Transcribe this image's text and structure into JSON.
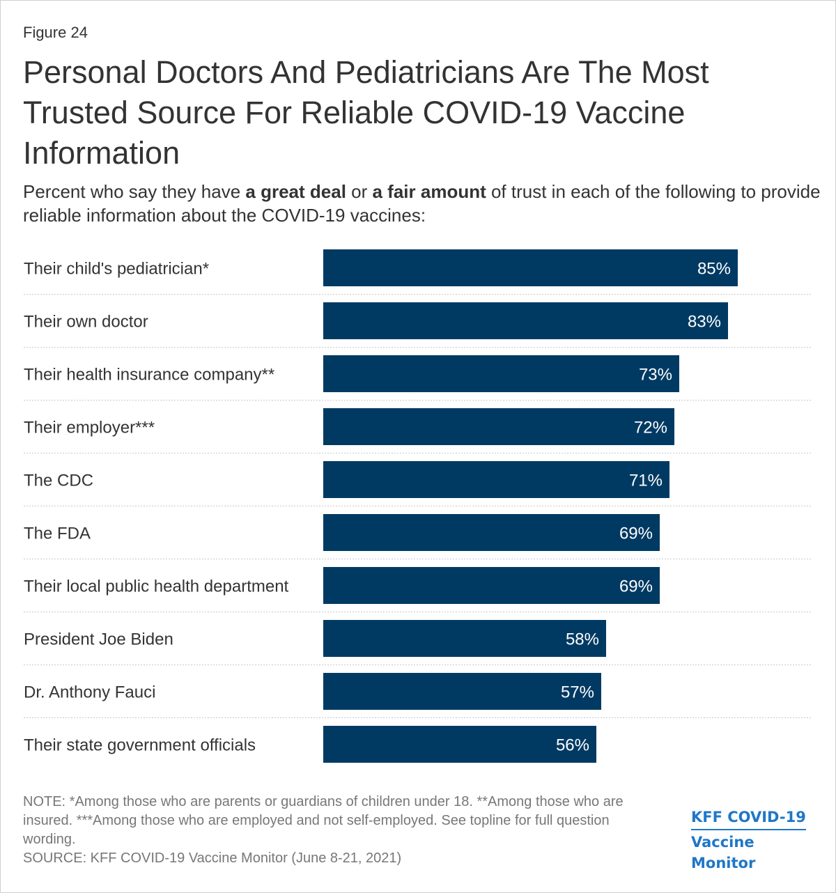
{
  "figure_label": "Figure 24",
  "title": "Personal Doctors And Pediatricians Are The Most Trusted Source For Reliable COVID-19 Vaccine Information",
  "subtitle": {
    "part1": "Percent who say they have ",
    "bold1": "a great deal",
    "part2": " or ",
    "bold2": "a fair amount",
    "part3": " of trust in each of the following to provide reliable information about the COVID-19 vaccines:"
  },
  "chart_data": {
    "type": "bar",
    "orientation": "horizontal",
    "categories": [
      "Their child's pediatrician*",
      "Their own doctor",
      "Their health insurance company**",
      "Their employer***",
      "The CDC",
      "The FDA",
      "Their local public health department",
      "President Joe Biden",
      "Dr. Anthony Fauci",
      "Their state government officials"
    ],
    "values": [
      85,
      83,
      73,
      72,
      71,
      69,
      69,
      58,
      57,
      56
    ],
    "value_labels": [
      "85%",
      "83%",
      "73%",
      "72%",
      "71%",
      "69%",
      "69%",
      "58%",
      "57%",
      "56%"
    ],
    "xlim": [
      0,
      100
    ],
    "bar_color": "#003a63",
    "grid": false
  },
  "note": "NOTE: *Among those who are parents or guardians of children under 18. **Among those who are insured. ***Among those who are employed and not self-employed. See topline for full question wording.",
  "source": "SOURCE: KFF COVID-19 Vaccine Monitor (June 8-21, 2021)",
  "logo": {
    "line1": "KFF COVID-19",
    "line2": "Vaccine Monitor",
    "color": "#1e77c8"
  }
}
